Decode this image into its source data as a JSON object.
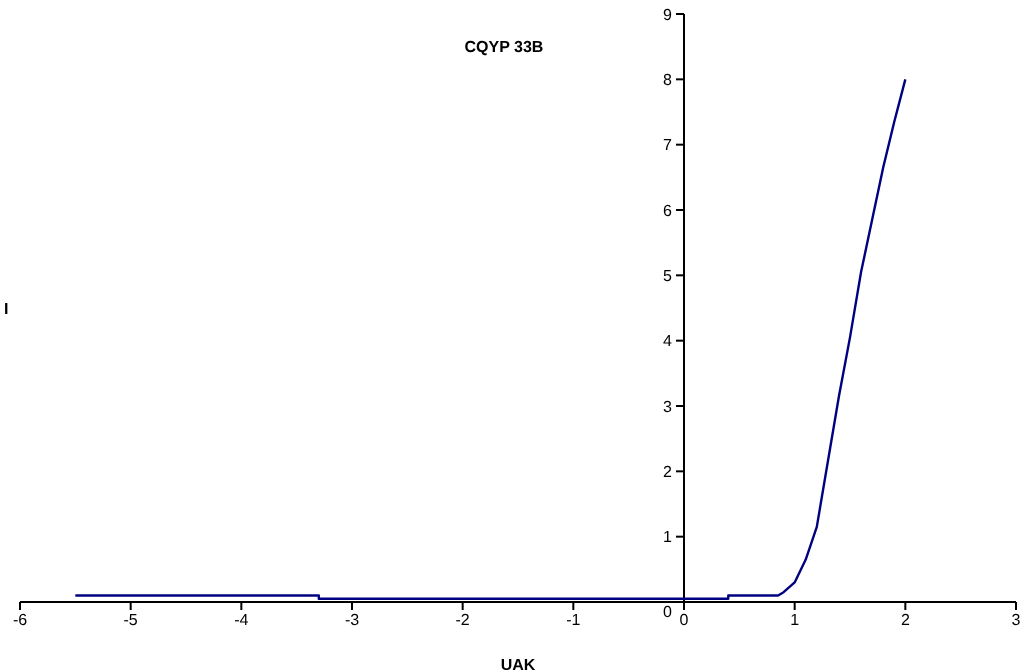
{
  "chart_data": {
    "type": "line",
    "title": "CQYP 33B",
    "xlabel": "UAK",
    "ylabel": "I",
    "series": [
      {
        "color": "#000080",
        "x": [
          -5.5,
          -3.3,
          -3.3,
          0.4,
          0.4,
          0.85,
          0.9,
          1.0,
          1.1,
          1.2,
          1.3,
          1.4,
          1.5,
          1.6,
          1.7,
          1.8,
          1.9,
          2.0
        ],
        "values": [
          0.1,
          0.1,
          0.05,
          0.05,
          0.1,
          0.1,
          0.15,
          0.3,
          0.65,
          1.15,
          2.15,
          3.15,
          4.05,
          5.05,
          5.85,
          6.65,
          7.35,
          8.0
        ]
      }
    ],
    "xlim": [
      -6,
      3
    ],
    "xticks": [
      -6,
      -5,
      -4,
      -3,
      -2,
      -1,
      0,
      1,
      2,
      3
    ],
    "ylim": [
      0,
      9
    ],
    "yticks": [
      0,
      1,
      2,
      3,
      4,
      5,
      6,
      7,
      8,
      9
    ],
    "grid": false,
    "legend": false,
    "marker": "none",
    "line_style": "solid"
  }
}
